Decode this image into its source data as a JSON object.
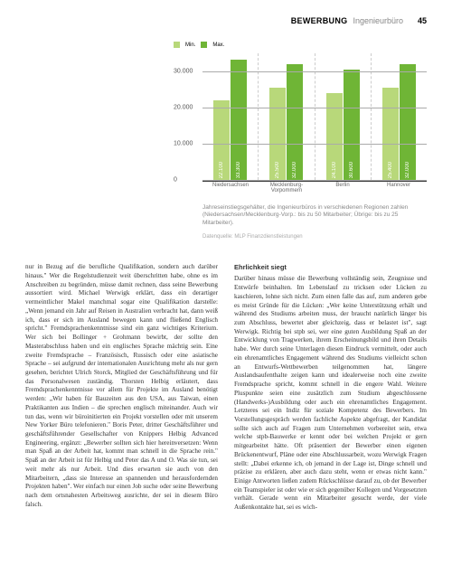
{
  "header": {
    "running": "BEWERBUNG",
    "subject": "Ingenieurbüro",
    "page": "45"
  },
  "chart": {
    "type": "bar",
    "legend": [
      {
        "label": "Min.",
        "color": "#b8d87a"
      },
      {
        "label": "Max.",
        "color": "#6fb536"
      }
    ],
    "ymax": 35000,
    "yticks": [
      0,
      10000,
      20000,
      30000
    ],
    "ytick_labels": [
      "0",
      "10.000",
      "20.000",
      "30.000"
    ],
    "grid_color": "#aaaaaa",
    "categories": [
      "Niedersachsen",
      "Mecklenburg-Vorpommern",
      "Berlin",
      "Hannover"
    ],
    "series": [
      {
        "min": 22100,
        "max": 33300,
        "min_label": "22.100",
        "max_label": "33.300"
      },
      {
        "min": 25500,
        "max": 32000,
        "min_label": "25.500",
        "max_label": "32.000"
      },
      {
        "min": 24100,
        "max": 30600,
        "min_label": "24.100",
        "max_label": "30.600"
      },
      {
        "min": 25400,
        "max": 32000,
        "min_label": "25.400",
        "max_label": "32.000"
      }
    ],
    "min_color": "#b8d87a",
    "max_color": "#6fb536",
    "caption": "Jahreseinstiegsgehälter, die Ingenieurbüros in verschiedenen Regionen zahlen (Niedersachsen/Mecklenburg-Vorp.: bis zu 50 Mitarbeiter; Übrige: bis zu 25 Mitarbeiter).",
    "source": "Datenquelle: MLP Finanzdienstleistungen"
  },
  "text": {
    "col1": "nur in Bezug auf die berufliche Qualifikation, sondern auch darüber hinaus.\" Wer die Regelstudienzeit weit überschritten habe, ohne es im Anschreiben zu begründen, müsse damit rechnen, dass seine Bewerbung aussortiert wird. Michael Werwigk erklärt, dass ein derartiger vermeintlicher Makel manchmal sogar eine Qualifikation darstelle: „Wenn jemand ein Jahr auf Reisen in Australien verbracht hat, dann weiß ich, dass er sich im Ausland bewegen kann und fließend Englisch spricht.\" Fremdsprachenkenntnisse sind ein ganz wichtiges Kriterium. Wer sich bei Bollinger + Grohmann bewirbt, der sollte den Masterabschluss haben und ein englisches Sprache mächtig sein. Eine zweite Fremdsprache – Französisch, Russisch oder eine asiatische Sprache – sei aufgrund der internationalen Ausrichtung mehr als nur gern gesehen, berichtet Ulrich Storck, Mitglied der Geschäftsführung und für das Personalwesen zuständig. Thorsten Helbig erläutert, dass Fremdsprachenkenntnisse vor allem für Projekte im Ausland benötigt werden: „Wir haben für Bauzeiten aus den USA, aus Taiwan, einen Praktikanten aus Indien – die sprechen englisch miteinander. Auch wir tun das, wenn wir büroinitierten ein Projekt vorstellen oder mit unserem New Yorker Büro telefonieren.\" Boris Peter, dritter Geschäftsführer und geschäftsführender Gesellschafter von Knippers Helbig Advanced Engineering, ergänzt: „Bewerber sollten sich hier hereinversetzen: Wenn man Spaß an der Arbeit hat, kommt man schnell in die Sprache rein.\" Spaß an der Arbeit ist für Helbig und Peter das A und O. Was sie tun, sei weit mehr als nur Arbeit. Und dies erwarten sie auch von den Mitarbeitern, „dass sie Interesse an spannenden und herausfordernden Projekten haben\". Wer einfach nur einen Job suche oder seine Bewerbung nach dem ortsnahesten Arbeitsweg ausrichte, der sei in diesem Büro falsch.",
    "subhead": "Ehrlichkeit siegt",
    "col2": "Darüber hinaus müsse die Bewerbung vollständig sein, Zeugnisse und Entwürfe beinhalten. Im Lebenslauf zu tricksen oder Lücken zu kaschieren, lohne sich nicht. Zum einen falle das auf, zum anderen gebe es meist Gründe für die Lücken: „Wer keine Unterstützung erhält und während des Studiums arbeiten muss, der braucht natürlich länger bis zum Abschluss, bewertet aber gleichzeig, dass er belastet ist\", sagt Werwigk. Richtig bei stpb sei, wer eine guten Ausbildung Spaß an der Entwicklung von Tragwerken, ihrem Erscheinungsbild und ihren Details habe. Wer durch seine Unterlagen diesen Eindruck vermittelt, oder auch ein ehrenamtliches Engagement während des Studiums vielleicht schon an Entwurfs-Wettbewerben teilgenommen hat, längere Auslandsaufenthalte zeigen kann und idealerweise noch eine zweite Fremdsprache spricht, kommt schnell in die engere Wahl. Weitere Pluspunkte seien eine zusätzlich zum Studium abgeschlossene (Handwerks-)Ausbildung oder auch ein ehrenamtliches Engagement. Letzteres sei ein Indiz für soziale Kompetenz des Bewerbers. Im Vorstellungsgespräch werden fachliche Aspekte abgefragt, der Kandidat sollte sich auch auf Fragen zum Unternehmen vorbereitet sein, etwa welche stpb-Bauwerke er kennt oder bei welchen Projekt er gern mitgearbeitet hätte. Oft präsentiert der Bewerber einen eigenen Brückenentwurf, Pläne oder eine Abschlussarbeit, wozu Werwigk Fragen stellt: „Dabei erkenne ich, ob jemand in der Lage ist, Dinge schnell und präzise zu erklären, aber auch dazu steht, wenn er etwas nicht kann.\" Einige Antworten ließen zudem Rückschlüsse darauf zu, ob der Bewerber ein Teamspieler ist oder wie er sich gegenüber Kollegen und Vorgesetzten verhält. Gerade wenn ein Mitarbeiter gesucht werde, der viele Außenkontakte hat, sei es wich-"
  }
}
